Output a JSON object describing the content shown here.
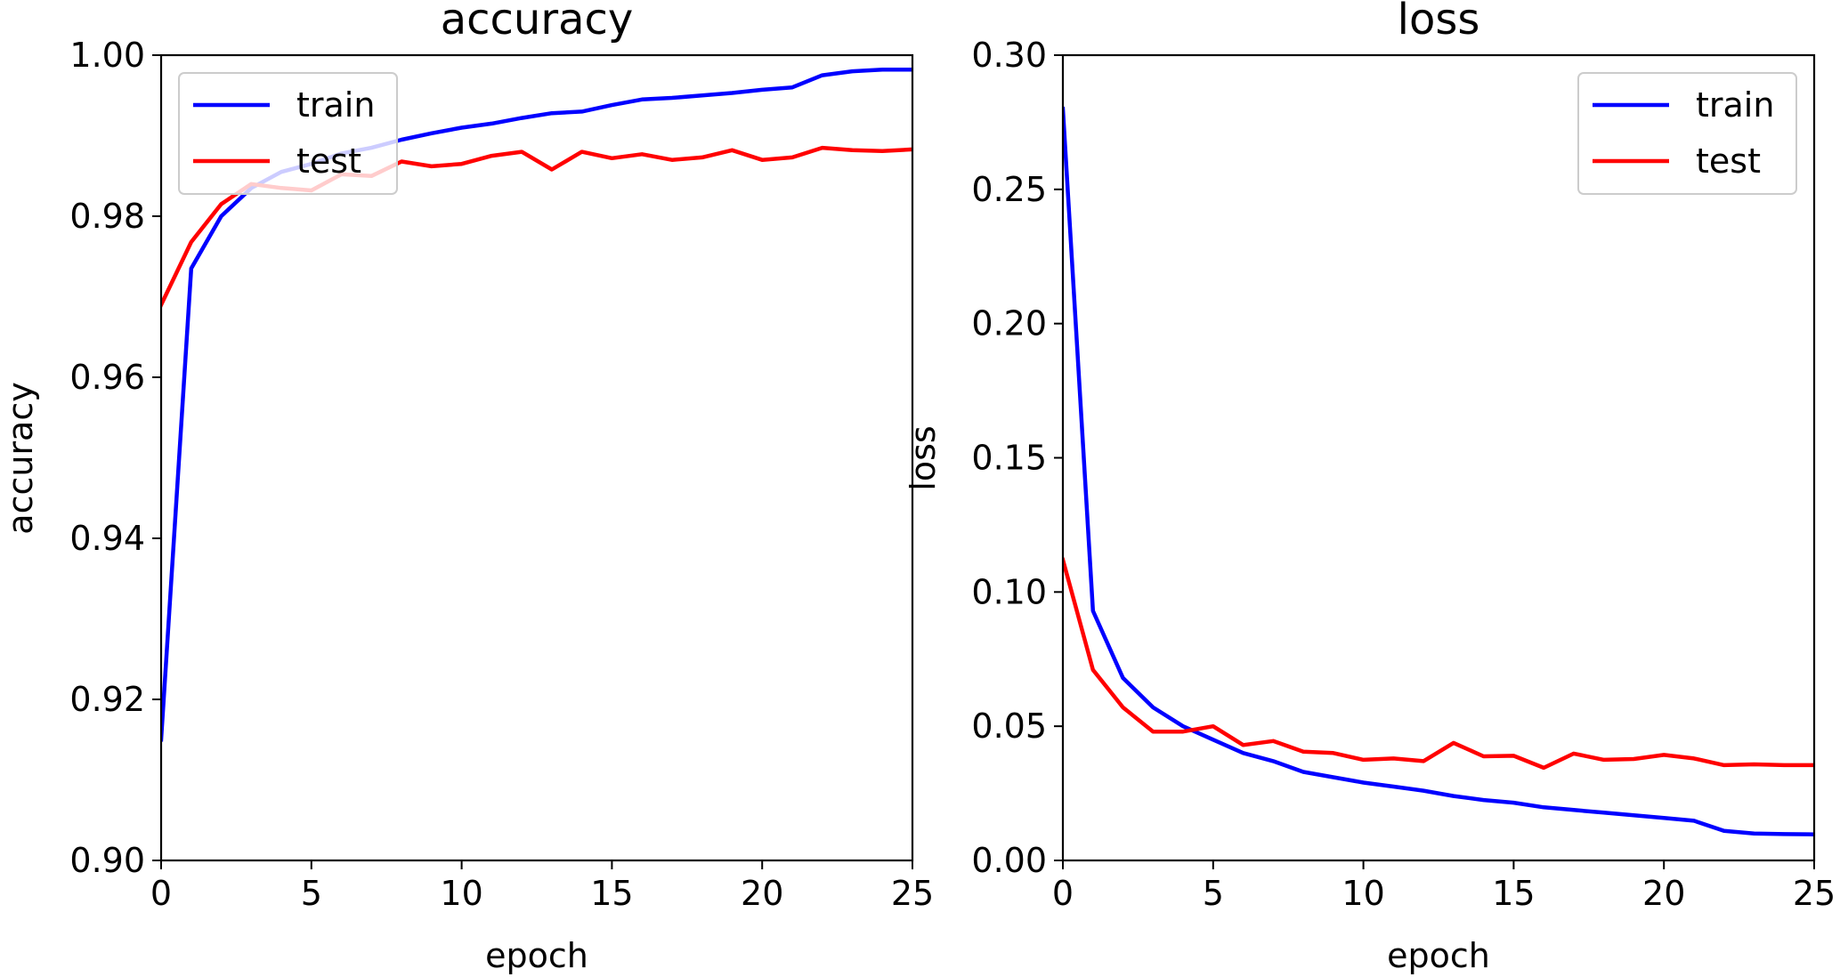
{
  "chart_data": [
    {
      "type": "line",
      "title": "accuracy",
      "xlabel": "epoch",
      "ylabel": "accuracy",
      "xlim": [
        0,
        25
      ],
      "ylim": [
        0.9,
        1.0
      ],
      "xticks": [
        0,
        5,
        10,
        15,
        20,
        25
      ],
      "xtick_labels": [
        "0",
        "5",
        "10",
        "15",
        "20",
        "25"
      ],
      "yticks": [
        0.9,
        0.92,
        0.94,
        0.96,
        0.98,
        1.0
      ],
      "ytick_labels": [
        "0.90",
        "0.92",
        "0.94",
        "0.96",
        "0.98",
        "1.00"
      ],
      "grid": false,
      "legend_position": "top-left",
      "x": [
        0,
        1,
        2,
        3,
        4,
        5,
        6,
        7,
        8,
        9,
        10,
        11,
        12,
        13,
        14,
        15,
        16,
        17,
        18,
        19,
        20,
        21,
        22,
        23,
        24,
        25
      ],
      "series": [
        {
          "name": "train",
          "color": "#0000ff",
          "values": [
            0.915,
            0.9735,
            0.98,
            0.9835,
            0.9855,
            0.9865,
            0.9878,
            0.9885,
            0.9895,
            0.9903,
            0.991,
            0.9915,
            0.9922,
            0.9928,
            0.993,
            0.9938,
            0.9945,
            0.9947,
            0.995,
            0.9953,
            0.9957,
            0.996,
            0.9975,
            0.998,
            0.9982,
            0.9982
          ]
        },
        {
          "name": "test",
          "color": "#ff0000",
          "values": [
            0.969,
            0.9768,
            0.9815,
            0.984,
            0.9835,
            0.9832,
            0.9852,
            0.985,
            0.9868,
            0.9862,
            0.9865,
            0.9875,
            0.988,
            0.9858,
            0.988,
            0.9872,
            0.9877,
            0.987,
            0.9873,
            0.9882,
            0.987,
            0.9873,
            0.9885,
            0.9882,
            0.9881,
            0.9883
          ]
        }
      ]
    },
    {
      "type": "line",
      "title": "loss",
      "xlabel": "epoch",
      "ylabel": "loss",
      "xlim": [
        0,
        25
      ],
      "ylim": [
        0.0,
        0.3
      ],
      "xticks": [
        0,
        5,
        10,
        15,
        20,
        25
      ],
      "xtick_labels": [
        "0",
        "5",
        "10",
        "15",
        "20",
        "25"
      ],
      "yticks": [
        0.0,
        0.05,
        0.1,
        0.15,
        0.2,
        0.25,
        0.3
      ],
      "ytick_labels": [
        "0.00",
        "0.05",
        "0.10",
        "0.15",
        "0.20",
        "0.25",
        "0.30"
      ],
      "grid": false,
      "legend_position": "top-right",
      "x": [
        0,
        1,
        2,
        3,
        4,
        5,
        6,
        7,
        8,
        9,
        10,
        11,
        12,
        13,
        14,
        15,
        16,
        17,
        18,
        19,
        20,
        21,
        22,
        23,
        24,
        25
      ],
      "series": [
        {
          "name": "train",
          "color": "#0000ff",
          "values": [
            0.28,
            0.093,
            0.068,
            0.057,
            0.05,
            0.045,
            0.04,
            0.037,
            0.033,
            0.031,
            0.029,
            0.0275,
            0.026,
            0.024,
            0.0225,
            0.0215,
            0.0198,
            0.0188,
            0.0178,
            0.0168,
            0.0158,
            0.0148,
            0.011,
            0.01,
            0.0098,
            0.0097
          ]
        },
        {
          "name": "test",
          "color": "#ff0000",
          "values": [
            0.112,
            0.071,
            0.057,
            0.048,
            0.048,
            0.05,
            0.043,
            0.0445,
            0.0405,
            0.04,
            0.0375,
            0.038,
            0.037,
            0.0438,
            0.0388,
            0.039,
            0.0345,
            0.0398,
            0.0375,
            0.0378,
            0.0393,
            0.038,
            0.0355,
            0.0358,
            0.0355,
            0.0355
          ]
        }
      ]
    }
  ]
}
